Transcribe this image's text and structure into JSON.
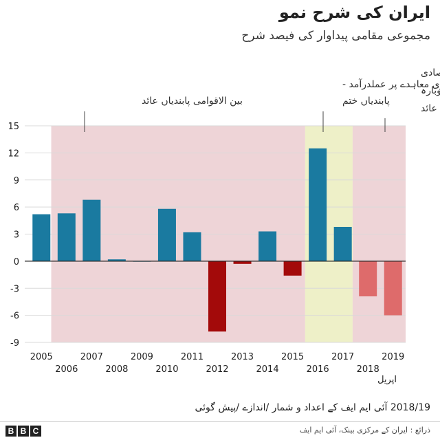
{
  "header": {
    "title": "ایران کی شرح نمو",
    "subtitle": "مجموعی مقامی پیداوار کی فیصد شرح"
  },
  "chart_data": {
    "type": "bar",
    "title": "ایران کی شرح نمو",
    "ylabel": "مجموعی مقامی پیداوار کی فیصد شرح",
    "ylim": [
      -9,
      15
    ],
    "yticks": [
      15,
      12,
      9,
      6,
      3,
      0,
      -3,
      -6,
      -9
    ],
    "ytick_labels": [
      "15",
      "12",
      "9",
      "6",
      "3",
      "0",
      "-3",
      "-6",
      "-9"
    ],
    "categories": [
      "2005",
      "2006",
      "2007",
      "2008",
      "2009",
      "2010",
      "2011",
      "2012",
      "2013",
      "2014",
      "2015",
      "2016",
      "2017",
      "2018",
      "2019"
    ],
    "values": [
      5.2,
      5.3,
      6.8,
      0.2,
      0.0,
      5.8,
      3.2,
      -7.8,
      -0.3,
      3.3,
      -1.6,
      12.5,
      3.8,
      -3.9,
      -6.0
    ],
    "bar_kinds": [
      "actual",
      "actual",
      "actual",
      "actual",
      "actual",
      "actual",
      "actual",
      "severe",
      "severe",
      "actual",
      "severe",
      "actual",
      "actual",
      "forecast",
      "forecast"
    ],
    "colors": {
      "actual": "#1a7aa0",
      "severe": "#a30a0a",
      "forecast": "#de6b6b",
      "sanctions_shade": "#eed4d7",
      "deal_shade": "#eef0c8"
    },
    "year_labels_top": [
      "2005",
      "2007",
      "2009",
      "2011",
      "2013",
      "2015",
      "2017",
      "2019"
    ],
    "year_labels_bottom": [
      "2006",
      "2008",
      "2010",
      "2012",
      "2014",
      "2016",
      "2018"
    ],
    "april_label": "اپریل",
    "annotations": {
      "intl_sanctions": "بین الاقوامی پابندیاں عائد",
      "deal_line1": "جوہری معاہدے پر عملدرآمد -",
      "deal_line2": "پابندیاں ختم",
      "us_line1": "امریکی اقتصادی",
      "us_line2": "پابندی دوبارہ",
      "us_line3": "عائد"
    }
  },
  "footer": {
    "note": "2018/19 آئی ایم ایف کے اعداد و شمار /اندازے /پیش گوئی",
    "source": "ذرائع : ایران کے مرکزی بینک، آئی ایم ایف",
    "logo_letters": [
      "B",
      "B",
      "C"
    ]
  }
}
